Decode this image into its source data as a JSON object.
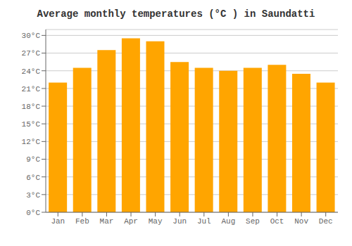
{
  "chart_data": {
    "type": "bar",
    "title": "Average monthly temperatures (°C ) in Saundatti",
    "categories": [
      "Jan",
      "Feb",
      "Mar",
      "Apr",
      "May",
      "Jun",
      "Jul",
      "Aug",
      "Sep",
      "Oct",
      "Nov",
      "Dec"
    ],
    "values": [
      22.0,
      24.5,
      27.5,
      29.5,
      29.0,
      25.5,
      24.5,
      24.0,
      24.5,
      25.0,
      23.5,
      22.0
    ],
    "color": "#FFA500",
    "ylim": [
      0,
      31
    ],
    "yticks": [
      {
        "value": 0,
        "label": "0°C"
      },
      {
        "value": 3,
        "label": "3°C"
      },
      {
        "value": 6,
        "label": "6°C"
      },
      {
        "value": 9,
        "label": "9°C"
      },
      {
        "value": 12,
        "label": "12°C"
      },
      {
        "value": 15,
        "label": "15°C"
      },
      {
        "value": 18,
        "label": "18°C"
      },
      {
        "value": 21,
        "label": "21°C"
      },
      {
        "value": 24,
        "label": "24°C"
      },
      {
        "value": 27,
        "label": "27°C"
      },
      {
        "value": 30,
        "label": "30°C"
      }
    ],
    "grid": true
  }
}
